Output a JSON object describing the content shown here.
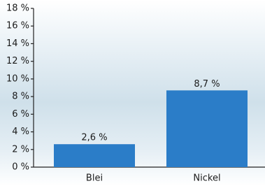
{
  "chart_data": {
    "type": "bar",
    "categories": [
      "Blei",
      "Nickel"
    ],
    "values": [
      2.6,
      8.7
    ],
    "value_labels": [
      "2,6 %",
      "8,7 %"
    ],
    "color": "#2b7dc8",
    "ylim": [
      0,
      18
    ],
    "yticks": [
      {
        "value": 0,
        "label": "0 %"
      },
      {
        "value": 2,
        "label": "2 %"
      },
      {
        "value": 4,
        "label": "4 %"
      },
      {
        "value": 6,
        "label": "6 %"
      },
      {
        "value": 8,
        "label": "8 %"
      },
      {
        "value": 10,
        "label": "10 %"
      },
      {
        "value": 12,
        "label": "12 %"
      },
      {
        "value": 14,
        "label": "14 %"
      },
      {
        "value": 16,
        "label": "16 %"
      },
      {
        "value": 18,
        "label": "18 %"
      }
    ],
    "grid": false
  }
}
